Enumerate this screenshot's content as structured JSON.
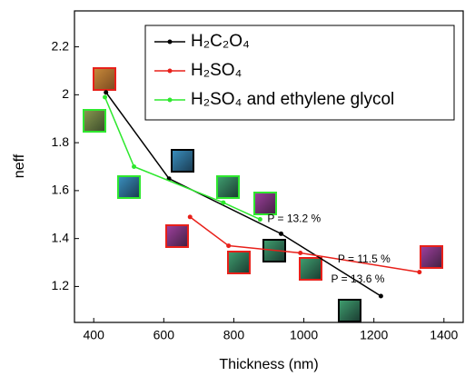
{
  "chart_data": {
    "type": "line",
    "x_label": "Thickness (nm)",
    "y_label": "neff",
    "xlim": [
      345,
      1455
    ],
    "ylim": [
      1.05,
      2.35
    ],
    "xticks": [
      400,
      600,
      800,
      1000,
      1200,
      1400
    ],
    "yticks": [
      1.2,
      1.4,
      1.6,
      1.8,
      2.0,
      2.2
    ],
    "series": [
      {
        "name": "H₂C₂O₄",
        "color": "#000000",
        "x": [
          435,
          615,
          935,
          1220
        ],
        "values": [
          2.01,
          1.65,
          1.42,
          1.16
        ],
        "annotation": "P = 13.6 %"
      },
      {
        "name": "H₂SO₄",
        "color": "#e8201a",
        "x": [
          675,
          785,
          990,
          1330
        ],
        "values": [
          1.49,
          1.37,
          1.34,
          1.26
        ],
        "annotation": "P = 11.5 %"
      },
      {
        "name": "H₂SO₄ and ethylene glycol",
        "color": "#2ee82e",
        "x": [
          432,
          515,
          770,
          875
        ],
        "values": [
          1.99,
          1.7,
          1.55,
          1.48
        ],
        "annotation": "P = 13.2 %"
      }
    ]
  }
}
